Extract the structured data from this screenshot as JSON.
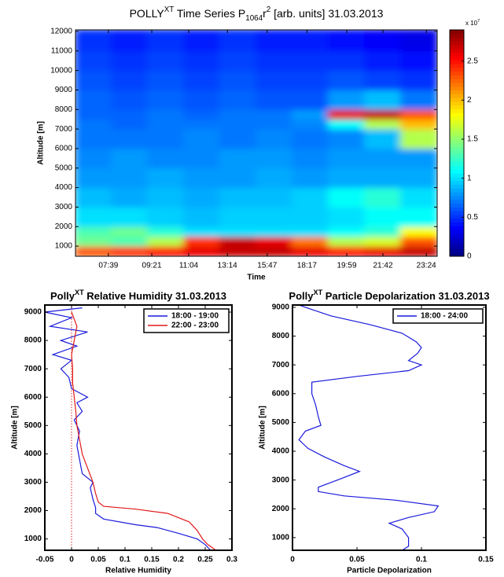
{
  "chart_data": [
    {
      "type": "heatmap",
      "title": [
        {
          "text": "POLLY"
        },
        {
          "text": "XT",
          "script": "sup"
        },
        {
          "text": " Time Series P"
        },
        {
          "text": "1064",
          "script": "sub"
        },
        {
          "text": "r"
        },
        {
          "text": "2",
          "script": "sup"
        },
        {
          "text": " [arb. units] 31.03.2013"
        }
      ],
      "x_label": "Time",
      "y_label": "Altitude [m]",
      "xlim": [
        0,
        10
      ],
      "xticks": [
        {
          "value": 0.91,
          "label": "07:39"
        },
        {
          "value": 2.11,
          "label": "09:21"
        },
        {
          "value": 3.13,
          "label": "11:04"
        },
        {
          "value": 4.2,
          "label": "13:14"
        },
        {
          "value": 5.3,
          "label": "15:47"
        },
        {
          "value": 6.4,
          "label": "18:17"
        },
        {
          "value": 7.5,
          "label": "19:59"
        },
        {
          "value": 8.5,
          "label": "21:42"
        },
        {
          "value": 9.7,
          "label": "23:24"
        }
      ],
      "ylim": [
        480,
        12080
      ],
      "yticks": [
        1000,
        2000,
        3000,
        4000,
        5000,
        6000,
        7000,
        8000,
        9000,
        10000,
        11000,
        12000
      ],
      "y_bins": [
        480,
        1000,
        1500,
        2000,
        3000,
        4000,
        5000,
        6000,
        7000,
        7500,
        8000,
        9000,
        10000,
        11000,
        12080
      ],
      "z": [
        [
          2.3,
          2.4,
          2.5,
          2.6,
          2.7,
          2.7,
          2.6,
          2.5,
          2.6,
          2.7
        ],
        [
          1.4,
          1.3,
          1.6,
          2.4,
          2.7,
          2.6,
          2.2,
          1.6,
          1.7,
          2.3
        ],
        [
          1.3,
          1.4,
          1.2,
          1.0,
          1.0,
          1.0,
          1.0,
          1.1,
          1.2,
          1.8
        ],
        [
          1.0,
          1.0,
          0.95,
          0.9,
          0.95,
          0.95,
          0.95,
          1.0,
          1.1,
          1.1
        ],
        [
          0.9,
          0.85,
          0.9,
          0.85,
          0.9,
          0.9,
          0.95,
          1.1,
          1.2,
          1.0
        ],
        [
          0.8,
          0.8,
          0.85,
          0.8,
          0.8,
          0.85,
          0.8,
          0.85,
          0.85,
          0.85
        ],
        [
          0.75,
          0.8,
          0.75,
          0.75,
          0.8,
          0.8,
          0.75,
          0.8,
          0.8,
          0.8
        ],
        [
          0.7,
          0.7,
          0.7,
          0.75,
          0.7,
          0.75,
          0.7,
          0.75,
          0.9,
          1.6
        ],
        [
          0.7,
          0.65,
          0.7,
          0.7,
          0.7,
          0.7,
          0.75,
          1.1,
          1.6,
          2.0
        ],
        [
          0.65,
          0.65,
          0.7,
          0.65,
          0.7,
          0.7,
          0.8,
          2.6,
          2.7,
          2.3
        ],
        [
          0.65,
          0.6,
          0.65,
          0.6,
          0.65,
          0.6,
          0.6,
          0.8,
          0.9,
          0.7
        ],
        [
          0.6,
          0.55,
          0.6,
          0.55,
          0.6,
          0.55,
          0.55,
          0.6,
          0.55,
          0.5
        ],
        [
          0.55,
          0.5,
          0.55,
          0.5,
          0.55,
          0.5,
          0.5,
          0.5,
          0.45,
          0.4
        ],
        [
          0.5,
          0.45,
          0.5,
          0.45,
          0.5,
          0.45,
          0.45,
          0.4,
          0.35,
          0.3
        ]
      ],
      "colormap": "jet",
      "zlim": [
        0,
        2.9
      ],
      "colorbar_ticks": [
        0,
        0.5,
        1,
        1.5,
        2,
        2.5
      ],
      "colorbar_multiplier": [
        {
          "text": "x 10"
        },
        {
          "text": "7",
          "script": "sup"
        }
      ]
    },
    {
      "type": "profile",
      "title": [
        {
          "text": "Polly"
        },
        {
          "text": "XT",
          "script": "sup"
        },
        {
          "text": " Relative Humidity 31.03.2013"
        }
      ],
      "x_label": "Relative Humidity",
      "y_label": "Altitude [m]",
      "xlim": [
        -0.05,
        0.3
      ],
      "xticks": [
        -0.05,
        0,
        0.05,
        0.1,
        0.15,
        0.2,
        0.25,
        0.3
      ],
      "ylim": [
        600,
        9250
      ],
      "yticks": [
        1000,
        2000,
        3000,
        4000,
        5000,
        6000,
        7000,
        8000,
        9000
      ],
      "reference_line_x": 0,
      "reference_line_color": "#e02020",
      "legend": "upper right",
      "series": [
        {
          "name": "18:00 - 19:00",
          "color": "#1a1adb",
          "altitude": [
            600,
            800,
            1000,
            1200,
            1400,
            1500,
            1700,
            1900,
            2100,
            2400,
            2800,
            3000,
            3300,
            3800,
            4300,
            4800,
            5200,
            5500,
            5800,
            6000,
            6300,
            6700,
            7000,
            7300,
            7500,
            7800,
            8000,
            8300,
            8500,
            8800,
            9000,
            9150
          ],
          "values": [
            0.26,
            0.25,
            0.235,
            0.2,
            0.16,
            0.12,
            0.06,
            0.045,
            0.045,
            0.04,
            0.035,
            0.04,
            0.02,
            0.015,
            0.01,
            0.015,
            0.005,
            0.02,
            0.01,
            0.03,
            0.0,
            -0.005,
            -0.02,
            0.0,
            -0.035,
            0.01,
            -0.02,
            0.03,
            -0.04,
            0.0,
            -0.05,
            0.02
          ]
        },
        {
          "name": "22:00 - 23:00",
          "color": "#e01a1a",
          "altitude": [
            600,
            800,
            1000,
            1300,
            1600,
            1900,
            2050,
            2150,
            2300,
            2600,
            3000,
            3500,
            4000,
            4500,
            5000,
            5500,
            6000,
            6500,
            7000,
            7500,
            8000,
            8500,
            9000
          ],
          "values": [
            0.27,
            0.255,
            0.245,
            0.235,
            0.22,
            0.18,
            0.12,
            0.06,
            0.05,
            0.045,
            0.04,
            0.03,
            0.02,
            0.015,
            0.01,
            0.008,
            0.005,
            0.002,
            0.002,
            0.0,
            0.005,
            0.01,
            0.0
          ]
        }
      ]
    },
    {
      "type": "profile",
      "title": [
        {
          "text": "Polly"
        },
        {
          "text": "XT",
          "script": "sup"
        },
        {
          "text": " Particle Depolarization 31.03.2013"
        }
      ],
      "x_label": "Particle Depolarization",
      "y_label": "Altitude [m]",
      "xlim": [
        0,
        0.15
      ],
      "xticks": [
        0,
        0.05,
        0.1,
        0.15
      ],
      "ylim": [
        560,
        9080
      ],
      "yticks": [
        1000,
        2000,
        3000,
        4000,
        5000,
        6000,
        7000,
        8000,
        9000
      ],
      "legend": "upper right",
      "series": [
        {
          "name": "18:00 - 24:00",
          "color": "#1a1adb",
          "altitude": [
            560,
            700,
            1000,
            1300,
            1500,
            1700,
            1900,
            2100,
            2300,
            2450,
            2600,
            2750,
            3000,
            3300,
            3500,
            3800,
            4100,
            4400,
            4700,
            4900,
            5200,
            5600,
            6000,
            6400,
            6600,
            6800,
            7000,
            7150,
            7400,
            7600,
            7800,
            8100,
            8400,
            8700,
            9000,
            9080
          ],
          "values": [
            0.085,
            0.09,
            0.09,
            0.085,
            0.075,
            0.09,
            0.11,
            0.113,
            0.08,
            0.04,
            0.02,
            0.02,
            0.035,
            0.052,
            0.04,
            0.025,
            0.012,
            0.005,
            0.01,
            0.022,
            0.02,
            0.018,
            0.015,
            0.015,
            0.05,
            0.09,
            0.1,
            0.09,
            0.097,
            0.1,
            0.096,
            0.085,
            0.06,
            0.03,
            0.01,
            0.005
          ]
        }
      ]
    }
  ]
}
